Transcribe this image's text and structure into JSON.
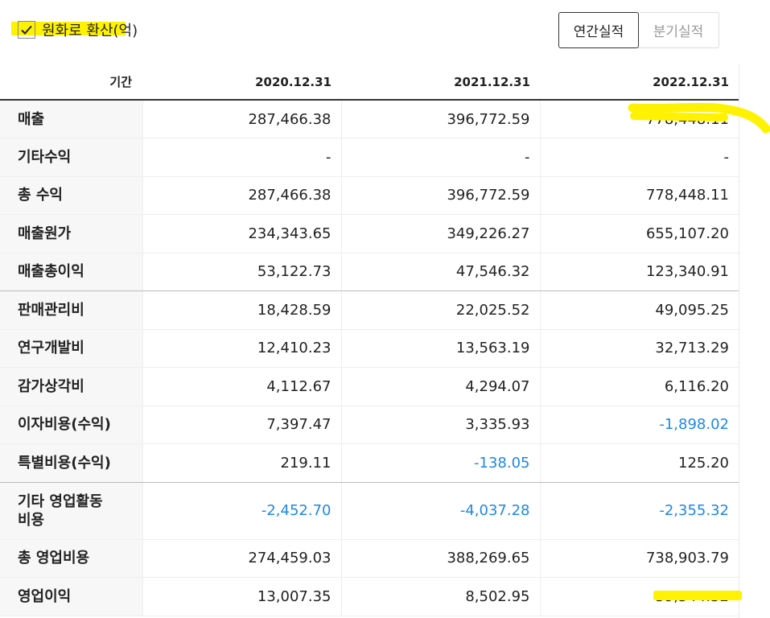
{
  "options": {
    "krw_convert_label": "원화로 환산(억)",
    "krw_convert_checked": true
  },
  "period_toggle": {
    "annual_label": "연간실적",
    "quarterly_label": "분기실적",
    "selected": "annual"
  },
  "table": {
    "header": {
      "period_label": "기간",
      "columns": [
        "2020.12.31",
        "2021.12.31",
        "2022.12.31"
      ]
    },
    "rows": [
      {
        "label": "매출",
        "values": [
          "287,466.38",
          "396,772.59",
          "778,448.11"
        ]
      },
      {
        "label": "기타수익",
        "values": [
          "-",
          "-",
          "-"
        ]
      },
      {
        "label": "총 수익",
        "values": [
          "287,466.38",
          "396,772.59",
          "778,448.11"
        ]
      },
      {
        "label": "매출원가",
        "values": [
          "234,343.65",
          "349,226.27",
          "655,107.20"
        ]
      },
      {
        "label": "매출총이익",
        "values": [
          "53,122.73",
          "47,546.32",
          "123,340.91"
        ]
      },
      {
        "label": "판매관리비",
        "values": [
          "18,428.59",
          "22,025.52",
          "49,095.25"
        ]
      },
      {
        "label": "연구개발비",
        "values": [
          "12,410.23",
          "13,563.19",
          "32,713.29"
        ]
      },
      {
        "label": "감가상각비",
        "values": [
          "4,112.67",
          "4,294.07",
          "6,116.20"
        ]
      },
      {
        "label": "이자비용(수익)",
        "values": [
          "7,397.47",
          "3,335.93",
          "-1,898.02"
        ]
      },
      {
        "label": "특별비용(수익)",
        "values": [
          "219.11",
          "-138.05",
          "125.20"
        ]
      },
      {
        "label": "기타 영업활동 비용",
        "values": [
          "-2,452.70",
          "-4,037.28",
          "-2,355.32"
        ]
      },
      {
        "label": "총 영업비용",
        "values": [
          "274,459.03",
          "388,269.65",
          "738,903.79"
        ]
      },
      {
        "label": "영업이익",
        "values": [
          "13,007.35",
          "8,502.95",
          "39,544.32"
        ]
      }
    ]
  },
  "colors": {
    "negative": "#1e88e5",
    "highlight": "#fff200"
  }
}
